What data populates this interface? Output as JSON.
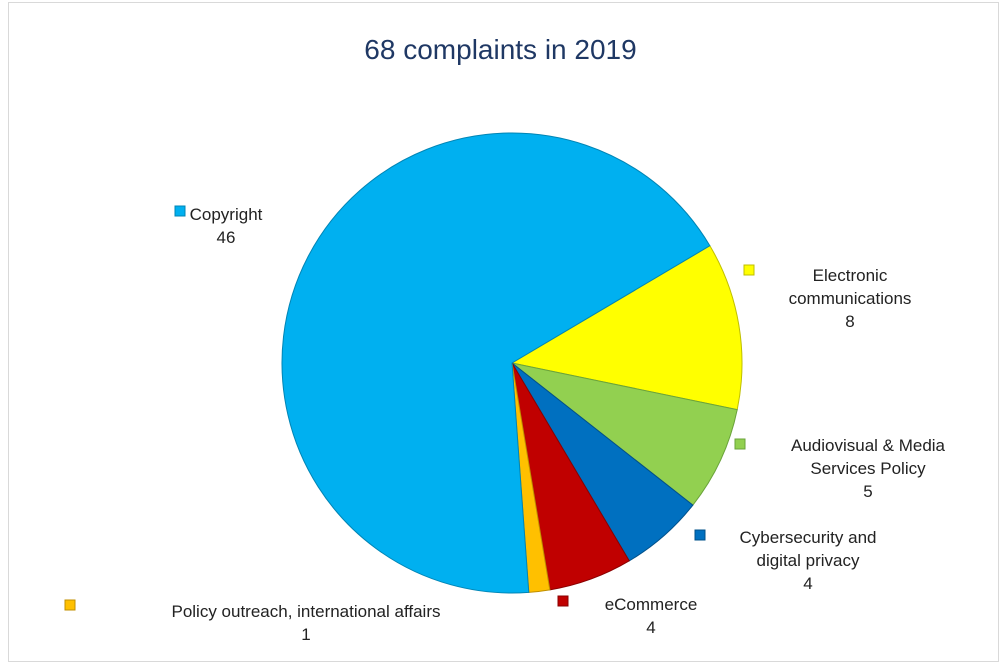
{
  "chart_data": {
    "type": "pie",
    "title": "68 complaints in 2019",
    "slices": [
      {
        "label": "Electronic communications",
        "label_lines": [
          "Electronic",
          "communications"
        ],
        "value": 8,
        "color": "#ffff00",
        "stroke": "#bfbf00"
      },
      {
        "label": "Audiovisual & Media Services Policy",
        "label_lines": [
          "Audiovisual & Media",
          "Services Policy"
        ],
        "value": 5,
        "color": "#92d050",
        "stroke": "#6aa33a"
      },
      {
        "label": "Cybersecurity and digital privacy",
        "label_lines": [
          "Cybersecurity and",
          "digital privacy"
        ],
        "value": 4,
        "color": "#0070c0",
        "stroke": "#00508a"
      },
      {
        "label": "eCommerce",
        "label_lines": [
          "eCommerce"
        ],
        "value": 4,
        "color": "#c00000",
        "stroke": "#8a0000"
      },
      {
        "label": "Policy outreach, international affairs",
        "label_lines": [
          "Policy outreach, international affairs"
        ],
        "value": 1,
        "color": "#ffc000",
        "stroke": "#c08f00"
      },
      {
        "label": "Copyright",
        "label_lines": [
          "Copyright"
        ],
        "value": 46,
        "color": "#00b0f0",
        "stroke": "#0085b5"
      }
    ]
  }
}
